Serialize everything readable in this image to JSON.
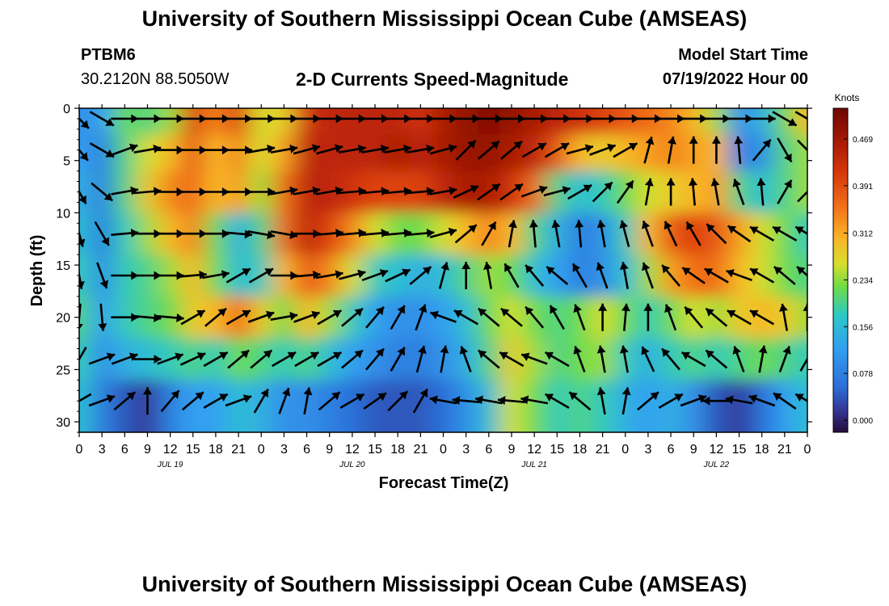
{
  "header": {
    "title": "University of Southern Mississippi Ocean Cube (AMSEAS)",
    "station": "PTBM6",
    "coords": "30.2120N  88.5050W",
    "subtitle": "2-D Currents Speed-Magnitude",
    "model_label": "Model Start Time",
    "model_time": "07/19/2022 Hour 00"
  },
  "footer": {
    "title": "University of Southern Mississippi Ocean Cube (AMSEAS)"
  },
  "colors": {
    "arrow": "#000000",
    "background": "#ffffff"
  },
  "chart_data": {
    "type": "heatmap",
    "xlabel": "Forecast Time(Z)",
    "ylabel": "Depth (ft)",
    "x_range_hours": [
      0,
      96
    ],
    "y_range_ft": [
      0,
      31
    ],
    "y_inverted": true,
    "x_tick_labels": [
      "0",
      "3",
      "6",
      "9",
      "12",
      "15",
      "18",
      "21",
      "0",
      "3",
      "6",
      "9",
      "12",
      "15",
      "18",
      "21",
      "0",
      "3",
      "6",
      "9",
      "12",
      "15",
      "18",
      "21",
      "0",
      "3",
      "6",
      "9",
      "12",
      "15",
      "18",
      "21",
      "0"
    ],
    "y_ticks": [
      0,
      5,
      10,
      15,
      20,
      25,
      30
    ],
    "date_labels": [
      {
        "label": "JUL 19",
        "hour": 12
      },
      {
        "label": "JUL 20",
        "hour": 36
      },
      {
        "label": "JUL 21",
        "hour": 60
      },
      {
        "label": "JUL 22",
        "hour": 84
      }
    ],
    "colorbar": {
      "title": "Knots",
      "range": [
        -0.02,
        0.52
      ],
      "ticks": [
        "0.000",
        "0.078",
        "0.156",
        "0.234",
        "0.312",
        "0.391",
        "0.469"
      ],
      "tick_values": [
        0.0,
        0.078,
        0.156,
        0.234,
        0.312,
        0.391,
        0.469
      ]
    },
    "depths_ft": [
      1,
      4,
      8,
      12,
      16,
      20,
      24,
      28
    ],
    "speed_knots": [
      [
        0.1,
        0.12,
        0.22,
        0.2,
        0.24,
        0.4,
        0.34,
        0.4,
        0.26,
        0.28,
        0.42,
        0.44,
        0.44,
        0.44,
        0.44,
        0.42,
        0.46,
        0.48,
        0.5,
        0.48,
        0.46,
        0.44,
        0.42,
        0.4,
        0.38,
        0.36,
        0.34,
        0.3,
        0.24,
        0.1,
        0.14,
        0.22,
        0.3
      ],
      [
        0.12,
        0.08,
        0.2,
        0.26,
        0.3,
        0.38,
        0.3,
        0.34,
        0.26,
        0.32,
        0.44,
        0.44,
        0.44,
        0.44,
        0.46,
        0.44,
        0.46,
        0.48,
        0.48,
        0.46,
        0.44,
        0.38,
        0.3,
        0.28,
        0.3,
        0.32,
        0.34,
        0.32,
        0.3,
        0.08,
        0.1,
        0.2,
        0.24
      ],
      [
        0.14,
        0.08,
        0.2,
        0.28,
        0.34,
        0.36,
        0.3,
        0.32,
        0.24,
        0.36,
        0.44,
        0.44,
        0.42,
        0.4,
        0.4,
        0.4,
        0.44,
        0.46,
        0.46,
        0.42,
        0.36,
        0.2,
        0.16,
        0.18,
        0.22,
        0.26,
        0.28,
        0.3,
        0.32,
        0.2,
        0.16,
        0.2,
        0.24
      ],
      [
        0.16,
        0.08,
        0.18,
        0.24,
        0.3,
        0.34,
        0.22,
        0.14,
        0.2,
        0.36,
        0.44,
        0.4,
        0.34,
        0.26,
        0.22,
        0.22,
        0.26,
        0.3,
        0.34,
        0.3,
        0.2,
        0.14,
        0.08,
        0.1,
        0.18,
        0.3,
        0.38,
        0.4,
        0.38,
        0.32,
        0.26,
        0.22,
        0.18
      ],
      [
        0.18,
        0.1,
        0.18,
        0.2,
        0.24,
        0.3,
        0.22,
        0.16,
        0.18,
        0.3,
        0.38,
        0.34,
        0.26,
        0.18,
        0.16,
        0.14,
        0.16,
        0.2,
        0.24,
        0.22,
        0.16,
        0.12,
        0.08,
        0.1,
        0.16,
        0.24,
        0.32,
        0.36,
        0.36,
        0.3,
        0.26,
        0.22,
        0.2
      ],
      [
        0.2,
        0.12,
        0.18,
        0.2,
        0.22,
        0.28,
        0.3,
        0.36,
        0.28,
        0.22,
        0.3,
        0.24,
        0.18,
        0.12,
        0.1,
        0.1,
        0.12,
        0.16,
        0.22,
        0.26,
        0.22,
        0.2,
        0.22,
        0.26,
        0.22,
        0.18,
        0.22,
        0.26,
        0.24,
        0.28,
        0.3,
        0.28,
        0.24
      ],
      [
        0.18,
        0.1,
        0.14,
        0.16,
        0.18,
        0.2,
        0.18,
        0.22,
        0.2,
        0.18,
        0.2,
        0.16,
        0.12,
        0.1,
        0.08,
        0.08,
        0.1,
        0.14,
        0.2,
        0.28,
        0.24,
        0.2,
        0.22,
        0.24,
        0.18,
        0.14,
        0.18,
        0.2,
        0.18,
        0.2,
        0.22,
        0.2,
        0.18
      ],
      [
        0.16,
        0.08,
        0.04,
        0.02,
        0.08,
        0.12,
        0.12,
        0.16,
        0.14,
        0.1,
        0.1,
        0.08,
        0.06,
        0.04,
        0.04,
        0.04,
        0.06,
        0.1,
        0.16,
        0.26,
        0.22,
        0.18,
        0.2,
        0.18,
        0.14,
        0.12,
        0.14,
        0.1,
        0.04,
        0.02,
        0.06,
        0.12,
        0.16
      ]
    ],
    "direction_deg": [
      [
        -45,
        -30,
        0,
        0,
        0,
        0,
        0,
        0,
        0,
        0,
        0,
        0,
        0,
        0,
        0,
        0,
        0,
        0,
        0,
        0,
        0,
        0,
        0,
        0,
        0,
        0,
        0,
        0,
        0,
        0,
        0,
        -30,
        -30
      ],
      [
        -50,
        -30,
        20,
        10,
        0,
        0,
        0,
        0,
        10,
        10,
        15,
        15,
        10,
        10,
        10,
        10,
        15,
        45,
        40,
        40,
        30,
        30,
        15,
        20,
        30,
        75,
        80,
        90,
        90,
        95,
        50,
        -60,
        -45
      ],
      [
        -60,
        -40,
        10,
        5,
        0,
        0,
        0,
        0,
        0,
        10,
        10,
        10,
        5,
        5,
        5,
        5,
        10,
        25,
        35,
        35,
        20,
        15,
        30,
        45,
        55,
        80,
        90,
        95,
        100,
        110,
        95,
        60,
        45
      ],
      [
        -75,
        -60,
        5,
        0,
        0,
        0,
        0,
        -5,
        -10,
        -10,
        0,
        5,
        5,
        5,
        5,
        5,
        15,
        40,
        60,
        80,
        95,
        100,
        95,
        100,
        105,
        110,
        115,
        120,
        135,
        145,
        150,
        150,
        150
      ],
      [
        -80,
        -70,
        0,
        0,
        0,
        5,
        10,
        30,
        30,
        0,
        5,
        10,
        15,
        20,
        25,
        40,
        75,
        90,
        100,
        120,
        130,
        140,
        120,
        110,
        100,
        110,
        130,
        145,
        150,
        160,
        150,
        140,
        140
      ],
      [
        -95,
        -85,
        0,
        -5,
        -5,
        30,
        40,
        30,
        20,
        10,
        20,
        30,
        40,
        50,
        60,
        70,
        160,
        150,
        140,
        140,
        130,
        120,
        110,
        90,
        85,
        90,
        110,
        130,
        140,
        150,
        150,
        100,
        90
      ],
      [
        -120,
        20,
        20,
        0,
        20,
        25,
        30,
        40,
        40,
        30,
        30,
        30,
        40,
        50,
        60,
        75,
        80,
        110,
        140,
        150,
        160,
        150,
        110,
        100,
        100,
        115,
        130,
        150,
        140,
        110,
        80,
        70,
        60
      ],
      [
        -150,
        20,
        40,
        90,
        50,
        40,
        30,
        20,
        60,
        70,
        80,
        40,
        30,
        35,
        45,
        60,
        170,
        175,
        170,
        175,
        170,
        150,
        140,
        100,
        80,
        40,
        30,
        20,
        180,
        170,
        160,
        145,
        150
      ]
    ]
  }
}
